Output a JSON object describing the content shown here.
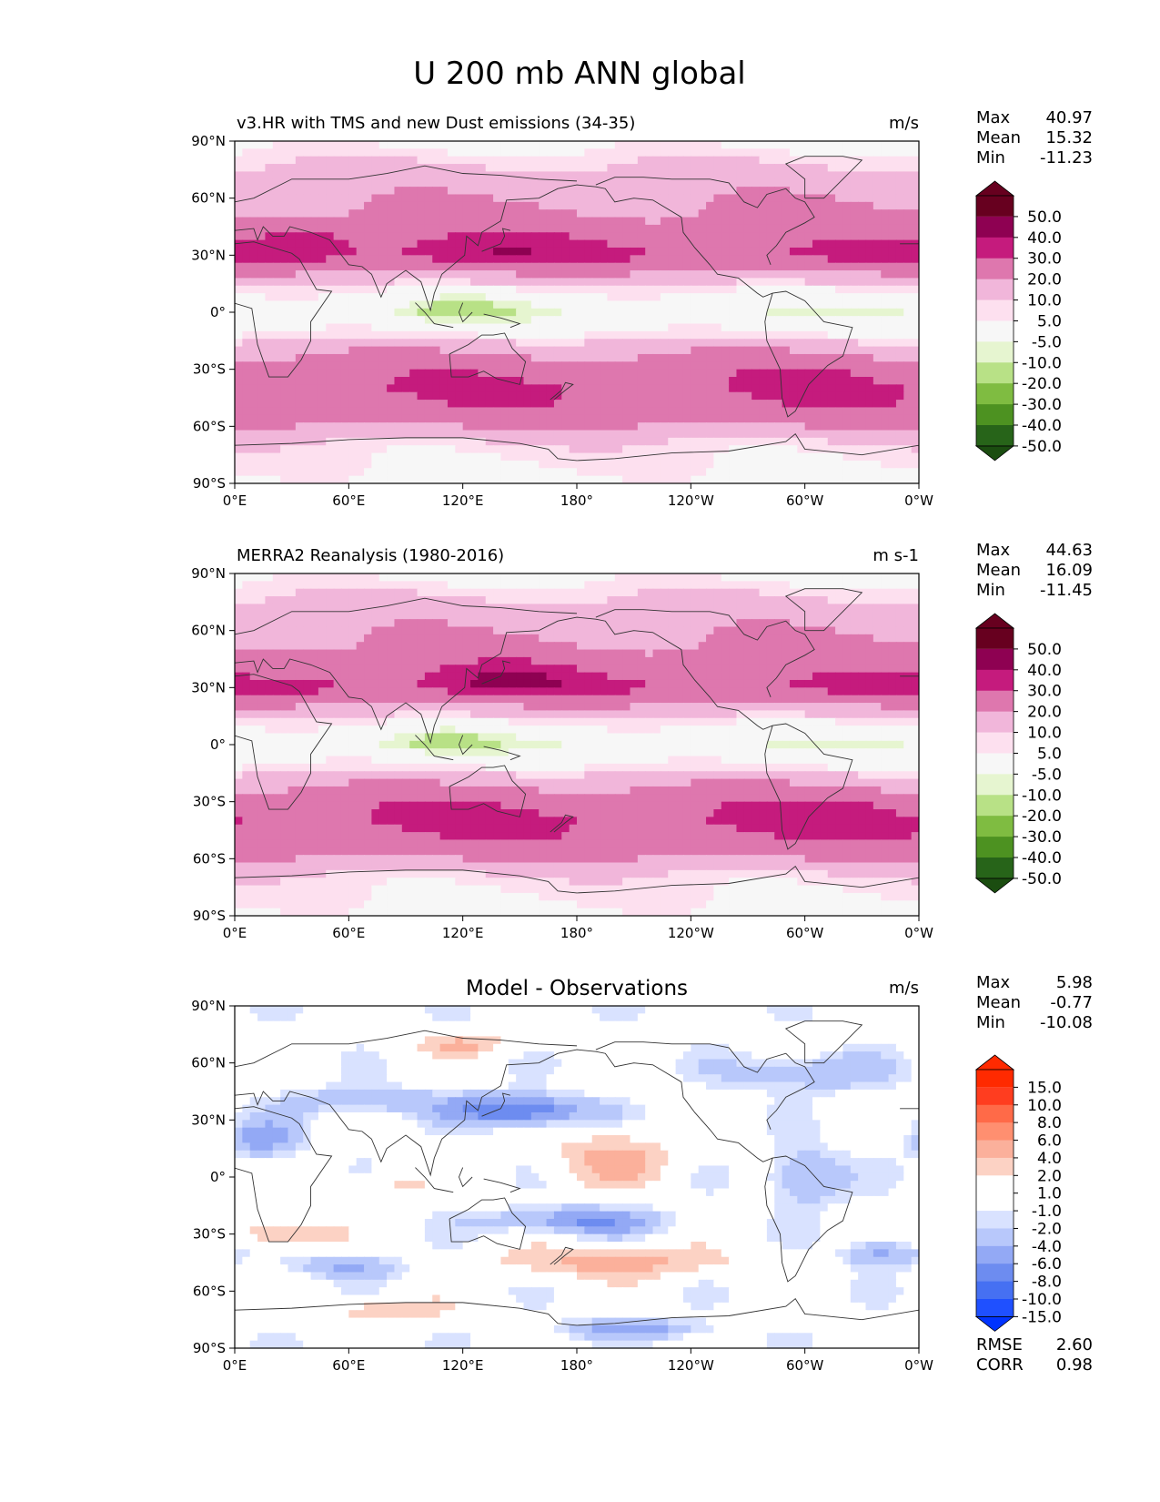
{
  "figure": {
    "title": "U 200 mb ANN global"
  },
  "chart_data": [
    {
      "type": "heatmap",
      "title": "v3.HR with TMS and new Dust emissions (34-35)",
      "units": "m/s",
      "stats": {
        "max_label": "Max",
        "max": "40.97",
        "mean_label": "Mean",
        "mean": "15.32",
        "min_label": "Min",
        "min": "-11.23"
      },
      "x_ticks": [
        "0°E",
        "60°E",
        "120°E",
        "180°",
        "120°W",
        "60°W",
        "0°W"
      ],
      "y_ticks": [
        "90°N",
        "60°N",
        "30°N",
        "0°",
        "30°S",
        "60°S",
        "90°S"
      ],
      "xlim": [
        0,
        360
      ],
      "ylim": [
        -90,
        90
      ],
      "colorbar": {
        "levels": [
          "50.0",
          "40.0",
          "30.0",
          "20.0",
          "10.0",
          "5.0",
          "-5.0",
          "-10.0",
          "-20.0",
          "-30.0",
          "-40.0",
          "-50.0"
        ],
        "colors": [
          "#8e0152",
          "#c51b7d",
          "#de77ae",
          "#f1b6da",
          "#fde0ef",
          "#f7f7f7",
          "#e6f5d0",
          "#b8e186",
          "#7fbc41",
          "#4d9221",
          "#276419"
        ],
        "top_extend": "#67001f",
        "bottom_extend": "#1b4d10"
      },
      "bands": [
        {
          "lat": 90,
          "value": 2
        },
        {
          "lat": 75,
          "value": 12
        },
        {
          "lat": 65,
          "value": 17
        },
        {
          "lat": 50,
          "value": 22
        },
        {
          "lat": 38,
          "value": 28
        },
        {
          "lat": 30,
          "value": 32
        },
        {
          "lat": 20,
          "value": 18
        },
        {
          "lat": 10,
          "value": 4
        },
        {
          "lat": 0,
          "value": -4
        },
        {
          "lat": -10,
          "value": 4
        },
        {
          "lat": -20,
          "value": 18
        },
        {
          "lat": -30,
          "value": 27
        },
        {
          "lat": -40,
          "value": 30
        },
        {
          "lat": -50,
          "value": 28
        },
        {
          "lat": -60,
          "value": 20
        },
        {
          "lat": -70,
          "value": 8
        },
        {
          "lat": -90,
          "value": 2
        }
      ],
      "features": [
        {
          "lon": 140,
          "lat": 32,
          "dlon": 40,
          "dlat": 9,
          "value": 38
        },
        {
          "lon": 40,
          "lat": 30,
          "dlon": 25,
          "dlat": 6,
          "value": 34
        },
        {
          "lon": 120,
          "lat": 2,
          "dlon": 30,
          "dlat": 8,
          "value": -12
        },
        {
          "lon": 40,
          "lat": 40,
          "dlon": 30,
          "dlat": 7,
          "value": 34
        },
        {
          "lon": 300,
          "lat": -35,
          "dlon": 25,
          "dlat": 8,
          "value": 33
        },
        {
          "lon": 280,
          "lat": 42,
          "dlon": 30,
          "dlat": 10,
          "value": 24
        }
      ]
    },
    {
      "type": "heatmap",
      "title": "MERRA2 Reanalysis (1980-2016)",
      "units": "m s-1",
      "stats": {
        "max_label": "Max",
        "max": "44.63",
        "mean_label": "Mean",
        "mean": "16.09",
        "min_label": "Min",
        "min": "-11.45"
      },
      "x_ticks": [
        "0°E",
        "60°E",
        "120°E",
        "180°",
        "120°W",
        "60°W",
        "0°W"
      ],
      "y_ticks": [
        "90°N",
        "60°N",
        "30°N",
        "0°",
        "30°S",
        "60°S",
        "90°S"
      ],
      "xlim": [
        0,
        360
      ],
      "ylim": [
        -90,
        90
      ],
      "colorbar": {
        "levels": [
          "50.0",
          "40.0",
          "30.0",
          "20.0",
          "10.0",
          "5.0",
          "-5.0",
          "-10.0",
          "-20.0",
          "-30.0",
          "-40.0",
          "-50.0"
        ],
        "colors": [
          "#8e0152",
          "#c51b7d",
          "#de77ae",
          "#f1b6da",
          "#fde0ef",
          "#f7f7f7",
          "#e6f5d0",
          "#b8e186",
          "#7fbc41",
          "#4d9221",
          "#276419"
        ],
        "top_extend": "#67001f",
        "bottom_extend": "#1b4d10"
      },
      "bands": [
        {
          "lat": 90,
          "value": 2
        },
        {
          "lat": 75,
          "value": 12
        },
        {
          "lat": 65,
          "value": 17
        },
        {
          "lat": 50,
          "value": 22
        },
        {
          "lat": 38,
          "value": 28
        },
        {
          "lat": 30,
          "value": 32
        },
        {
          "lat": 20,
          "value": 18
        },
        {
          "lat": 10,
          "value": 4
        },
        {
          "lat": 0,
          "value": -4
        },
        {
          "lat": -10,
          "value": 4
        },
        {
          "lat": -20,
          "value": 18
        },
        {
          "lat": -30,
          "value": 28
        },
        {
          "lat": -40,
          "value": 31
        },
        {
          "lat": -50,
          "value": 28
        },
        {
          "lat": -60,
          "value": 20
        },
        {
          "lat": -70,
          "value": 8
        },
        {
          "lat": -90,
          "value": 2
        }
      ],
      "features": [
        {
          "lon": 145,
          "lat": 34,
          "dlon": 30,
          "dlat": 8,
          "value": 44
        },
        {
          "lon": 40,
          "lat": 30,
          "dlon": 25,
          "dlat": 6,
          "value": 34
        },
        {
          "lon": 110,
          "lat": 2,
          "dlon": 30,
          "dlat": 7,
          "value": -12
        },
        {
          "lon": 310,
          "lat": -38,
          "dlon": 35,
          "dlat": 10,
          "value": 34
        },
        {
          "lon": 290,
          "lat": 40,
          "dlon": 35,
          "dlat": 9,
          "value": 26
        }
      ]
    },
    {
      "type": "heatmap",
      "title": "Model - Observations",
      "units": "m/s",
      "stats": {
        "max_label": "Max",
        "max": "5.98",
        "mean_label": "Mean",
        "mean": "-0.77",
        "min_label": "Min",
        "min": "-10.08"
      },
      "extra_stats": {
        "rmse_label": "RMSE",
        "rmse": "2.60",
        "corr_label": "CORR",
        "corr": "0.98"
      },
      "x_ticks": [
        "0°E",
        "60°E",
        "120°E",
        "180°",
        "120°W",
        "60°W",
        "0°W"
      ],
      "y_ticks": [
        "90°N",
        "60°N",
        "30°N",
        "0°",
        "30°S",
        "60°S",
        "90°S"
      ],
      "xlim": [
        0,
        360
      ],
      "ylim": [
        -90,
        90
      ],
      "colorbar": {
        "levels": [
          "15.0",
          "10.0",
          "8.0",
          "6.0",
          "4.0",
          "2.0",
          "1.0",
          "-1.0",
          "-2.0",
          "-4.0",
          "-6.0",
          "-8.0",
          "-10.0",
          "-15.0"
        ],
        "colors": [
          "#ff3d1f",
          "#ff6a48",
          "#ff8f70",
          "#fbb09b",
          "#fcd2c4",
          "#ffffff",
          "#ffffff",
          "#d9e2ff",
          "#b8c8fb",
          "#93a9f5",
          "#6d8cf0",
          "#4670f2",
          "#1f50ff"
        ],
        "top_extend": "#ff2a00",
        "bottom_extend": "#0033ff"
      },
      "bands": [
        {
          "lat": 90,
          "value": 0
        },
        {
          "lat": -90,
          "value": 0
        }
      ],
      "features": [
        {
          "lon": 150,
          "lat": 35,
          "dlon": 35,
          "dlat": 8,
          "value": -9
        },
        {
          "lon": 200,
          "lat": 10,
          "dlon": 30,
          "dlat": 14,
          "value": 5
        },
        {
          "lon": 200,
          "lat": -45,
          "dlon": 60,
          "dlat": 8,
          "value": 5
        },
        {
          "lon": 180,
          "lat": -23,
          "dlon": 45,
          "dlat": 7,
          "value": -6
        },
        {
          "lon": 15,
          "lat": 20,
          "dlon": 20,
          "dlat": 10,
          "value": -5
        },
        {
          "lon": 300,
          "lat": 0,
          "dlon": 20,
          "dlat": 15,
          "value": -5
        },
        {
          "lon": 25,
          "lat": -30,
          "dlon": 25,
          "dlat": 6,
          "value": 5
        },
        {
          "lon": 80,
          "lat": -70,
          "dlon": 30,
          "dlat": 6,
          "value": 4
        },
        {
          "lon": 120,
          "lat": 70,
          "dlon": 25,
          "dlat": 6,
          "value": 4
        },
        {
          "lon": 210,
          "lat": -80,
          "dlon": 40,
          "dlat": 5,
          "value": -5
        },
        {
          "lon": 70,
          "lat": 40,
          "dlon": 40,
          "dlat": 7,
          "value": -4
        },
        {
          "lon": 300,
          "lat": 55,
          "dlon": 40,
          "dlat": 10,
          "value": -4
        },
        {
          "lon": 60,
          "lat": -47,
          "dlon": 30,
          "dlat": 6,
          "value": -4
        },
        {
          "lon": 340,
          "lat": -40,
          "dlon": 20,
          "dlat": 7,
          "value": -5
        },
        {
          "lon": 75,
          "lat": -5,
          "dlon": 25,
          "dlat": 6,
          "value": 3
        }
      ]
    }
  ]
}
